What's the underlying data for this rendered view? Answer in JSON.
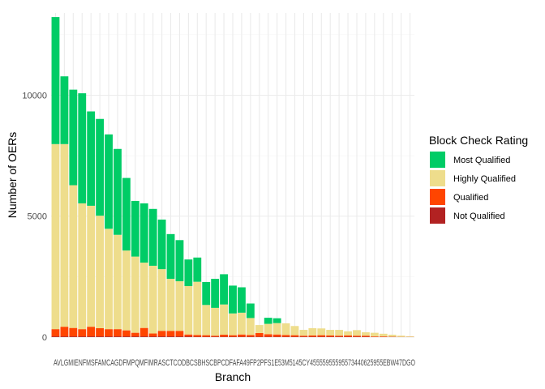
{
  "chart_data": {
    "type": "bar",
    "stacked": true,
    "xlabel": "Branch",
    "ylabel": "Number of OERs",
    "ylim": [
      0,
      13400
    ],
    "y_ticks": [
      0,
      5000,
      10000
    ],
    "y_tick_labels": [
      "0",
      "5000",
      "10000"
    ],
    "grid": true,
    "legend_title": "Block Check Rating",
    "legend_position": "right",
    "categories": [
      "AV",
      "LG",
      "MI",
      "EN",
      "MS",
      "FA",
      "MC",
      "AG",
      "DF",
      "MP",
      "QM",
      "CM",
      "FI",
      "AR",
      "SC",
      "TC",
      "OD",
      "BC",
      "BH",
      "SC",
      "BP",
      "CD",
      "FA",
      "49",
      "2P",
      "53",
      "51",
      "CY",
      "45",
      "55",
      "95",
      "36",
      "73",
      "40",
      "62",
      "59",
      "EB",
      "WY",
      "47",
      "LG",
      "DO"
    ],
    "x_tick_text": "AVLGMIENFMSFAMCAGDFMPQMFIMRASCTCODBCSBHSCBPCDFAFA49FP2PFS1E53M5145CY45555955595573440625955EBW47DGO",
    "series": [
      {
        "name": "Most Qualified",
        "color": "#00CC66",
        "values": [
          5250,
          2800,
          3950,
          4550,
          3900,
          4000,
          3900,
          3550,
          3000,
          2300,
          2450,
          2350,
          2050,
          1850,
          1700,
          1100,
          1000,
          950,
          1200,
          1250,
          1150,
          1050,
          600,
          0,
          250,
          200,
          0,
          0,
          0,
          0,
          0,
          0,
          0,
          0,
          0,
          0,
          0,
          0,
          0,
          0,
          0
        ]
      },
      {
        "name": "Highly Qualified",
        "color": "#EEDD8C",
        "values": [
          7650,
          7550,
          5900,
          5200,
          5000,
          4650,
          4150,
          3900,
          3300,
          3150,
          2700,
          2800,
          2550,
          2150,
          2050,
          2000,
          2200,
          1250,
          1150,
          1250,
          900,
          900,
          700,
          330,
          430,
          470,
          480,
          380,
          240,
          300,
          280,
          230,
          240,
          170,
          230,
          140,
          150,
          110,
          80,
          50,
          25
        ]
      },
      {
        "name": "Qualified",
        "color": "#FF4500",
        "values": [
          300,
          400,
          350,
          300,
          400,
          340,
          300,
          300,
          250,
          150,
          350,
          120,
          230,
          230,
          230,
          80,
          70,
          60,
          40,
          80,
          60,
          90,
          70,
          150,
          100,
          90,
          70,
          60,
          40,
          50,
          60,
          50,
          40,
          50,
          40,
          40,
          20,
          20,
          10,
          5,
          5
        ]
      },
      {
        "name": "Not Qualified",
        "color": "#B22222",
        "values": [
          30,
          30,
          30,
          30,
          30,
          30,
          30,
          30,
          30,
          30,
          30,
          30,
          30,
          30,
          30,
          30,
          20,
          20,
          20,
          20,
          20,
          20,
          20,
          20,
          20,
          20,
          20,
          20,
          20,
          20,
          20,
          20,
          20,
          20,
          20,
          20,
          10,
          10,
          10,
          5,
          5
        ]
      }
    ],
    "legend_order": [
      "Most Qualified",
      "Highly Qualified",
      "Qualified",
      "Not Qualified"
    ]
  }
}
